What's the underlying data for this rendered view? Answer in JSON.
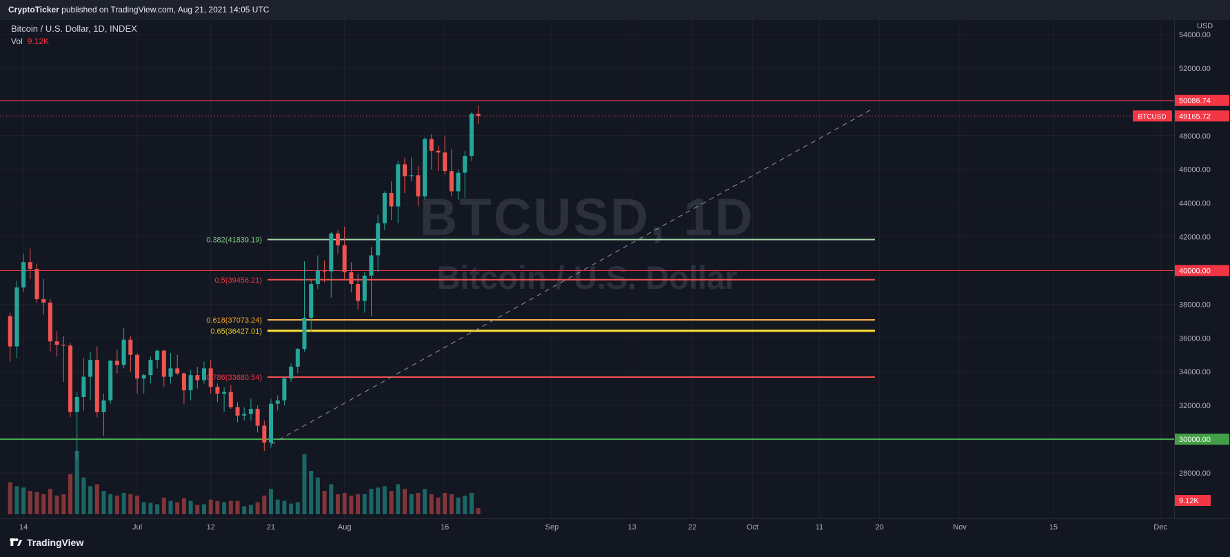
{
  "banner": {
    "author": "CryptoTicker",
    "rest": " published on TradingView.com, Aug 21, 2021 14:05 UTC"
  },
  "legend": {
    "symbol_title": "Bitcoin / U.S. Dollar, 1D, INDEX",
    "volume_label": "Vol",
    "volume_value": "9.12K"
  },
  "watermark": {
    "line1": "BTCUSD, 1D",
    "line2": "Bitcoin / U.S. Dollar"
  },
  "footer": {
    "brand": "TradingView"
  },
  "colors": {
    "background": "#131722",
    "axis_text": "#b2b5be",
    "grid": "rgba(255,255,255,0.05)",
    "axis_line": "#2a2e39",
    "candle_up": "#26a69a",
    "candle_down": "#ef5350",
    "volume_up": "rgba(38,166,154,0.55)",
    "volume_down": "rgba(239,83,80,0.5)",
    "badge_text": "#ffffff",
    "accent_red": "#f23645",
    "accent_green": "#43a047"
  },
  "chart_data": {
    "type": "candlestick",
    "symbol": "BTCUSD",
    "interval": "1D",
    "exchange": "INDEX",
    "title": "Bitcoin / U.S. Dollar, 1D, INDEX",
    "last_price": 49165.72,
    "last_volume_label": "9.12K",
    "price_axis": {
      "unit": "USD",
      "ticks": [
        54000,
        52000,
        50000,
        48000,
        46000,
        44000,
        42000,
        40000,
        38000,
        36000,
        34000,
        32000,
        30000,
        28000
      ],
      "range": [
        27000,
        54900
      ]
    },
    "time_axis": {
      "ticks": [
        {
          "label": "14",
          "day": 2
        },
        {
          "label": "Jul",
          "day": 19
        },
        {
          "label": "12",
          "day": 30
        },
        {
          "label": "21",
          "day": 39
        },
        {
          "label": "Aug",
          "day": 50
        },
        {
          "label": "16",
          "day": 65
        },
        {
          "label": "Sep",
          "day": 81
        },
        {
          "label": "13",
          "day": 93
        },
        {
          "label": "22",
          "day": 102
        },
        {
          "label": "Oct",
          "day": 111
        },
        {
          "label": "11",
          "day": 121
        },
        {
          "label": "20",
          "day": 130
        },
        {
          "label": "Nov",
          "day": 142
        },
        {
          "label": "15",
          "day": 156
        },
        {
          "label": "Dec",
          "day": 172
        }
      ]
    },
    "candles_note": "each row = [open, high, low, close, volume_k]; day index = row index (Jun 12 - Aug 21, 2021)",
    "candles": [
      [
        37300,
        37500,
        34600,
        35500,
        48
      ],
      [
        35500,
        39400,
        34800,
        39000,
        42
      ],
      [
        39000,
        41000,
        38700,
        40500,
        40
      ],
      [
        40500,
        41300,
        39500,
        40100,
        35
      ],
      [
        40100,
        40400,
        38100,
        38300,
        33
      ],
      [
        38300,
        39500,
        37400,
        38100,
        30
      ],
      [
        38100,
        38300,
        35200,
        35800,
        38
      ],
      [
        35800,
        36400,
        34900,
        35600,
        28
      ],
      [
        35600,
        36100,
        33400,
        35550,
        30
      ],
      [
        35550,
        35700,
        31300,
        31600,
        60
      ],
      [
        31600,
        32800,
        28800,
        32500,
        95
      ],
      [
        32500,
        34800,
        31700,
        33700,
        55
      ],
      [
        33700,
        35200,
        32300,
        34700,
        42
      ],
      [
        34700,
        35500,
        31300,
        31600,
        45
      ],
      [
        31600,
        32700,
        30200,
        32300,
        35
      ],
      [
        32300,
        34700,
        32100,
        34650,
        30
      ],
      [
        34650,
        35300,
        33900,
        34400,
        28
      ],
      [
        34400,
        36600,
        34200,
        35900,
        32
      ],
      [
        35900,
        36100,
        34000,
        35000,
        30
      ],
      [
        35000,
        35100,
        32700,
        33600,
        28
      ],
      [
        33600,
        33900,
        32700,
        33800,
        18
      ],
      [
        33800,
        34900,
        33300,
        34700,
        17
      ],
      [
        34700,
        35300,
        34200,
        35250,
        15
      ],
      [
        35250,
        35300,
        33100,
        33700,
        25
      ],
      [
        33700,
        35100,
        33300,
        34200,
        20
      ],
      [
        34200,
        35000,
        33800,
        33900,
        18
      ],
      [
        33900,
        33950,
        32100,
        32900,
        24
      ],
      [
        32900,
        34100,
        32300,
        33800,
        20
      ],
      [
        33800,
        34300,
        33000,
        33500,
        14
      ],
      [
        33500,
        34600,
        33300,
        34200,
        15
      ],
      [
        34200,
        34700,
        32700,
        33100,
        22
      ],
      [
        33100,
        33300,
        32200,
        32700,
        20
      ],
      [
        32700,
        33100,
        31600,
        32800,
        18
      ],
      [
        32800,
        33200,
        31800,
        31900,
        20
      ],
      [
        31900,
        32200,
        31000,
        31400,
        20
      ],
      [
        31400,
        31900,
        31100,
        31500,
        12
      ],
      [
        31500,
        32400,
        31100,
        31800,
        14
      ],
      [
        31800,
        32000,
        30400,
        30800,
        18
      ],
      [
        30800,
        31100,
        29300,
        29800,
        28
      ],
      [
        29800,
        32400,
        29500,
        32100,
        38
      ],
      [
        32100,
        32600,
        31700,
        32300,
        22
      ],
      [
        32300,
        33650,
        32000,
        33600,
        20
      ],
      [
        33600,
        34500,
        33400,
        34300,
        16
      ],
      [
        34300,
        35400,
        33900,
        35350,
        18
      ],
      [
        35350,
        40550,
        35200,
        37200,
        90
      ],
      [
        37200,
        39500,
        36400,
        39200,
        65
      ],
      [
        39200,
        40900,
        38900,
        40000,
        55
      ],
      [
        40000,
        40600,
        39300,
        39950,
        35
      ],
      [
        39950,
        42300,
        38400,
        42200,
        45
      ],
      [
        42200,
        42400,
        41000,
        41500,
        30
      ],
      [
        41500,
        42600,
        39500,
        39900,
        32
      ],
      [
        39900,
        40500,
        38700,
        39200,
        28
      ],
      [
        39200,
        39800,
        37700,
        38200,
        30
      ],
      [
        38200,
        39900,
        37500,
        39700,
        30
      ],
      [
        39700,
        41400,
        37300,
        40900,
        38
      ],
      [
        40900,
        43300,
        39900,
        42800,
        40
      ],
      [
        42800,
        44700,
        42400,
        44600,
        42
      ],
      [
        44600,
        45300,
        43000,
        43800,
        35
      ],
      [
        43800,
        46500,
        42800,
        46300,
        45
      ],
      [
        46300,
        46700,
        44600,
        45600,
        38
      ],
      [
        45600,
        46700,
        45300,
        45650,
        30
      ],
      [
        45650,
        46200,
        43800,
        44400,
        32
      ],
      [
        44400,
        47900,
        44200,
        47800,
        38
      ],
      [
        47800,
        48100,
        46000,
        47100,
        30
      ],
      [
        47100,
        47400,
        45900,
        47000,
        25
      ],
      [
        47000,
        48000,
        45700,
        45900,
        32
      ],
      [
        45900,
        47200,
        44400,
        44700,
        30
      ],
      [
        44700,
        46000,
        44200,
        45800,
        25
      ],
      [
        45800,
        47100,
        44300,
        46800,
        28
      ],
      [
        46800,
        49400,
        46500,
        49300,
        32
      ],
      [
        49300,
        49800,
        48700,
        49166,
        9.12
      ]
    ],
    "fib_levels": [
      {
        "label": "0.382(41839.19)",
        "value": 41839.19,
        "line_color": "#a5d6a7",
        "label_color": "#81c784",
        "width": 2
      },
      {
        "label": "0.5(39456.21)",
        "value": 39456.21,
        "line_color": "#ef5350",
        "label_color": "#f23645",
        "width": 2
      },
      {
        "label": "0.618(37073.24)",
        "value": 37073.24,
        "line_color": "#ffb74d",
        "label_color": "#f5a623",
        "width": 2
      },
      {
        "label": "0.65(36427.01)",
        "value": 36427.01,
        "line_color": "#ffe135",
        "label_color": "#ddc81f",
        "width": 3
      },
      {
        "label": "0.786(33680.54)",
        "value": 33680.54,
        "line_color": "#ef5350",
        "label_color": "#f23645",
        "width": 2
      }
    ],
    "price_lines": [
      {
        "price": 50086.74,
        "color": "#f23645",
        "style": "solid",
        "width": 1,
        "badge": "50086.74",
        "badge_bg": "#f23645"
      },
      {
        "price": 49165.72,
        "color": "#f23645",
        "style": "dotted",
        "width": 1,
        "badge": "49165.72",
        "badge_bg": "#f23645",
        "tag": "BTCUSD"
      },
      {
        "price": 40000,
        "color": "#f23645",
        "style": "solid",
        "width": 1,
        "badge": "40000.00",
        "badge_bg": "#f23645"
      },
      {
        "price": 30000,
        "color": "#4caf50",
        "style": "solid",
        "width": 2,
        "badge": "30000.00",
        "badge_bg": "#43a047"
      }
    ],
    "trendline": {
      "style": "dashed",
      "color": "#9598a1",
      "from": {
        "day": 39,
        "price": 29700
      },
      "to": {
        "day": 129,
        "price": 49600
      }
    },
    "legend_position": "top-left",
    "grid": true
  }
}
